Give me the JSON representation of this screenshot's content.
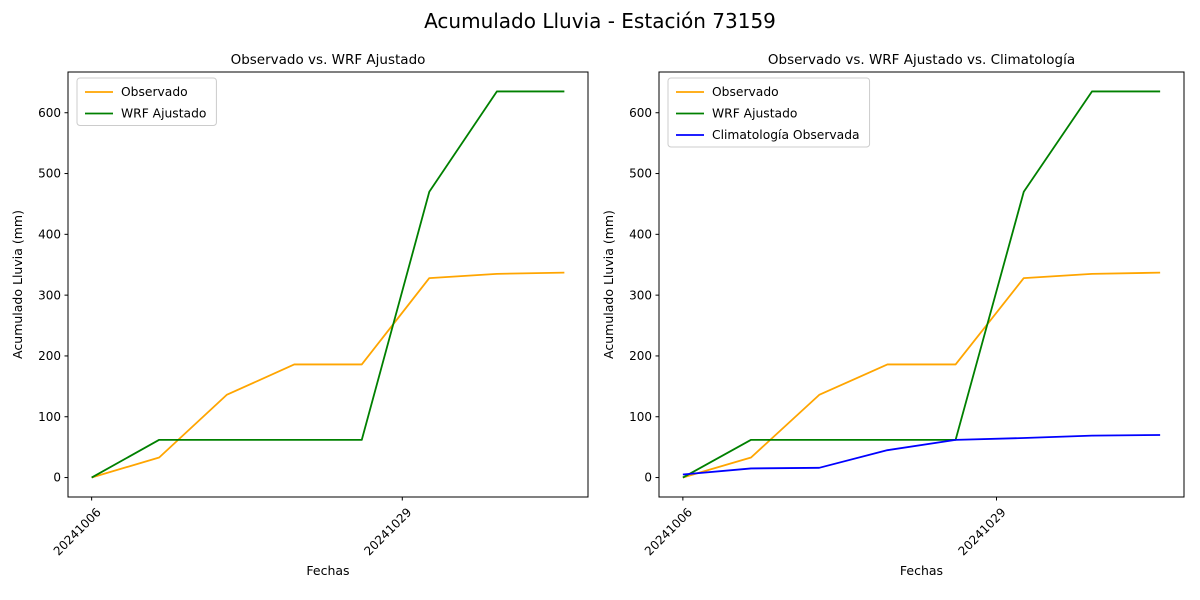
{
  "figure": {
    "suptitle": "Acumulado Lluvia - Estación 73159",
    "background": "#FFFFFF",
    "text_color": "#000000",
    "spine_color": "#000000"
  },
  "chart_data": [
    {
      "type": "line",
      "title": "Observado vs. WRF Ajustado",
      "xlabel": "Fechas",
      "ylabel": "Acumulado Lluvia (mm)",
      "x_unit": "days since first shown date",
      "x": [
        0,
        5,
        10,
        15,
        20,
        25,
        30,
        35
      ],
      "series": [
        {
          "name": "Observado",
          "color": "#FFA500",
          "values": [
            0,
            33,
            136,
            186,
            186,
            328,
            335,
            337
          ]
        },
        {
          "name": "WRF Ajustado",
          "color": "#008000",
          "values": [
            0,
            62,
            62,
            62,
            62,
            470,
            635,
            635
          ]
        }
      ],
      "xticks": [
        {
          "x": 0,
          "label": "20241006"
        },
        {
          "x": 23,
          "label": "20241029"
        }
      ],
      "yticks": [
        0,
        100,
        200,
        300,
        400,
        500,
        600
      ],
      "xlim": [
        -1.75,
        36.75
      ],
      "ylim": [
        -32,
        667
      ],
      "grid": false,
      "legend_position": "upper left"
    },
    {
      "type": "line",
      "title": "Observado vs. WRF Ajustado vs. Climatología",
      "xlabel": "Fechas",
      "ylabel": "Acumulado Lluvia (mm)",
      "x_unit": "days since first shown date",
      "x": [
        0,
        5,
        10,
        15,
        20,
        25,
        30,
        35
      ],
      "series": [
        {
          "name": "Observado",
          "color": "#FFA500",
          "values": [
            0,
            33,
            136,
            186,
            186,
            328,
            335,
            337
          ]
        },
        {
          "name": "WRF Ajustado",
          "color": "#008000",
          "values": [
            0,
            62,
            62,
            62,
            62,
            470,
            635,
            635
          ]
        },
        {
          "name": "Climatología Observada",
          "color": "#0000FF",
          "values": [
            5,
            15,
            16,
            45,
            62,
            65,
            69,
            70
          ]
        }
      ],
      "xticks": [
        {
          "x": 0,
          "label": "20241006"
        },
        {
          "x": 23,
          "label": "20241029"
        }
      ],
      "yticks": [
        0,
        100,
        200,
        300,
        400,
        500,
        600
      ],
      "xlim": [
        -1.75,
        36.75
      ],
      "ylim": [
        -32,
        667
      ],
      "grid": false,
      "legend_position": "upper left"
    }
  ]
}
